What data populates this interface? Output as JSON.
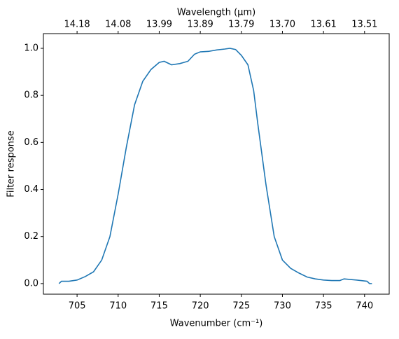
{
  "chart_data": {
    "type": "line",
    "xlabel": "Wavenumber (cm⁻¹)",
    "ylabel": "Filter response",
    "x2label": "Wavelength (μm)",
    "xlim": [
      700.9,
      743.0
    ],
    "ylim": [
      -0.045,
      1.0625
    ],
    "xticks": [
      705,
      710,
      715,
      720,
      725,
      730,
      735,
      740
    ],
    "x2ticks": [
      {
        "value": 705,
        "label": "14.18"
      },
      {
        "value": 710,
        "label": "14.08"
      },
      {
        "value": 715,
        "label": "13.99"
      },
      {
        "value": 720,
        "label": "13.89"
      },
      {
        "value": 725,
        "label": "13.79"
      },
      {
        "value": 730,
        "label": "13.70"
      },
      {
        "value": 735,
        "label": "13.61"
      },
      {
        "value": 740,
        "label": "13.51"
      }
    ],
    "yticks": [
      {
        "value": 0,
        "label": "0.0"
      },
      {
        "value": 0.2,
        "label": "0.2"
      },
      {
        "value": 0.4,
        "label": "0.4"
      },
      {
        "value": 0.6,
        "label": "0.6"
      },
      {
        "value": 0.8,
        "label": "0.8"
      },
      {
        "value": 1.0,
        "label": "1.0"
      }
    ],
    "series": [
      {
        "color": "#1f77b4",
        "x": [
          702.8,
          703.1,
          704,
          705,
          706,
          707,
          708,
          709,
          710,
          711,
          712,
          713,
          714,
          715,
          715.6,
          716.5,
          717.5,
          718.5,
          719.3,
          720,
          721,
          722,
          723,
          723.6,
          724.3,
          725,
          725.8,
          726.5,
          727,
          728,
          729,
          730,
          731,
          732,
          733,
          734,
          735,
          736,
          737,
          737.5,
          739,
          740.3,
          740.6,
          740.9
        ],
        "values": [
          0.0,
          0.01,
          0.01,
          0.015,
          0.03,
          0.05,
          0.1,
          0.2,
          0.38,
          0.58,
          0.76,
          0.86,
          0.91,
          0.94,
          0.945,
          0.93,
          0.935,
          0.945,
          0.975,
          0.985,
          0.987,
          0.993,
          0.997,
          1.0,
          0.995,
          0.97,
          0.93,
          0.82,
          0.68,
          0.42,
          0.2,
          0.1,
          0.065,
          0.045,
          0.028,
          0.02,
          0.015,
          0.013,
          0.013,
          0.02,
          0.015,
          0.01,
          0.0,
          0.0
        ]
      }
    ]
  }
}
